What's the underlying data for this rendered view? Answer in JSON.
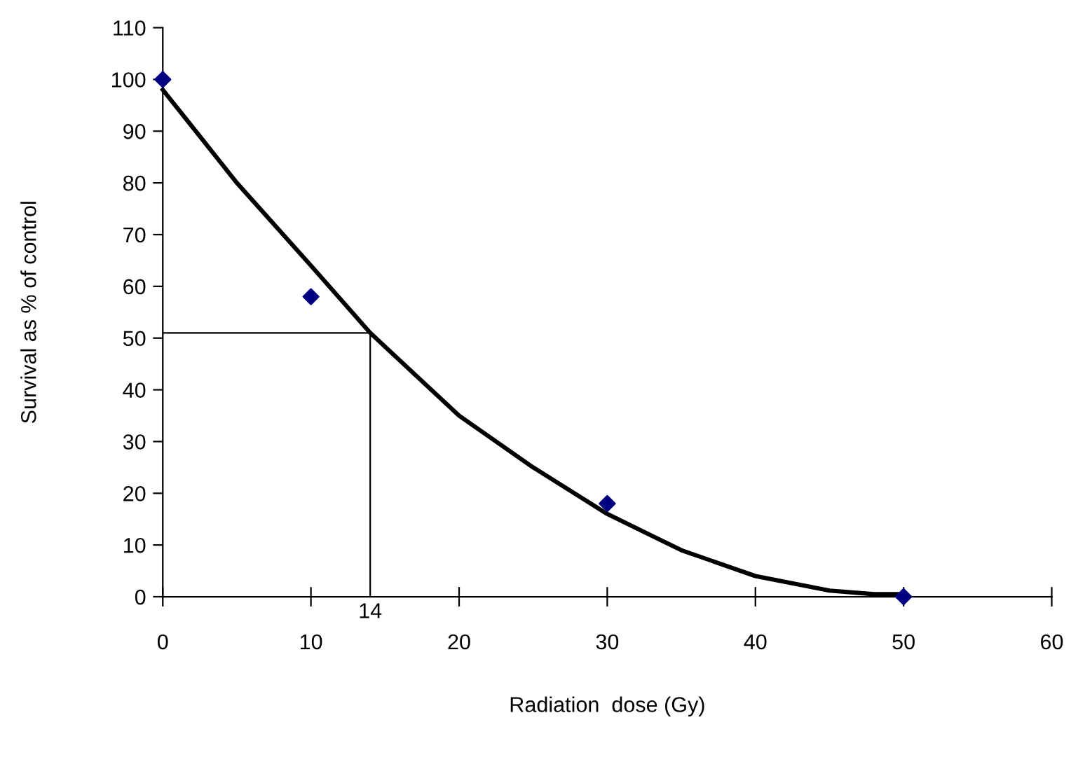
{
  "chart_data": {
    "type": "scatter",
    "xlabel": "Radiation  dose (Gy)",
    "ylabel": "Survival as % of control",
    "series": [
      {
        "color": "#000080",
        "marker": "diamond",
        "x": [
          0,
          10,
          30,
          50
        ],
        "values": [
          100,
          58,
          18,
          0
        ]
      },
      {
        "type": "line",
        "color": "#000000",
        "marker": "none",
        "line_style": "solid",
        "x": [
          0,
          5,
          10,
          14,
          20,
          25,
          30,
          35,
          40,
          45,
          48,
          50
        ],
        "values": [
          98,
          80,
          64,
          51,
          35,
          25,
          16,
          9,
          4,
          1.2,
          0.5,
          0.5
        ]
      }
    ],
    "ref_lines": [
      {
        "axis": "x",
        "value": 14,
        "label": "14",
        "color": "#000000"
      },
      {
        "axis": "y",
        "value": 51,
        "color": "#000000"
      }
    ],
    "xlim": [
      0,
      60
    ],
    "ylim": [
      0,
      110
    ],
    "xticks": [
      0,
      10,
      20,
      30,
      40,
      50,
      60
    ],
    "yticks": [
      0,
      10,
      20,
      30,
      40,
      50,
      60,
      70,
      80,
      90,
      100,
      110
    ],
    "grid": false,
    "legend": false
  }
}
